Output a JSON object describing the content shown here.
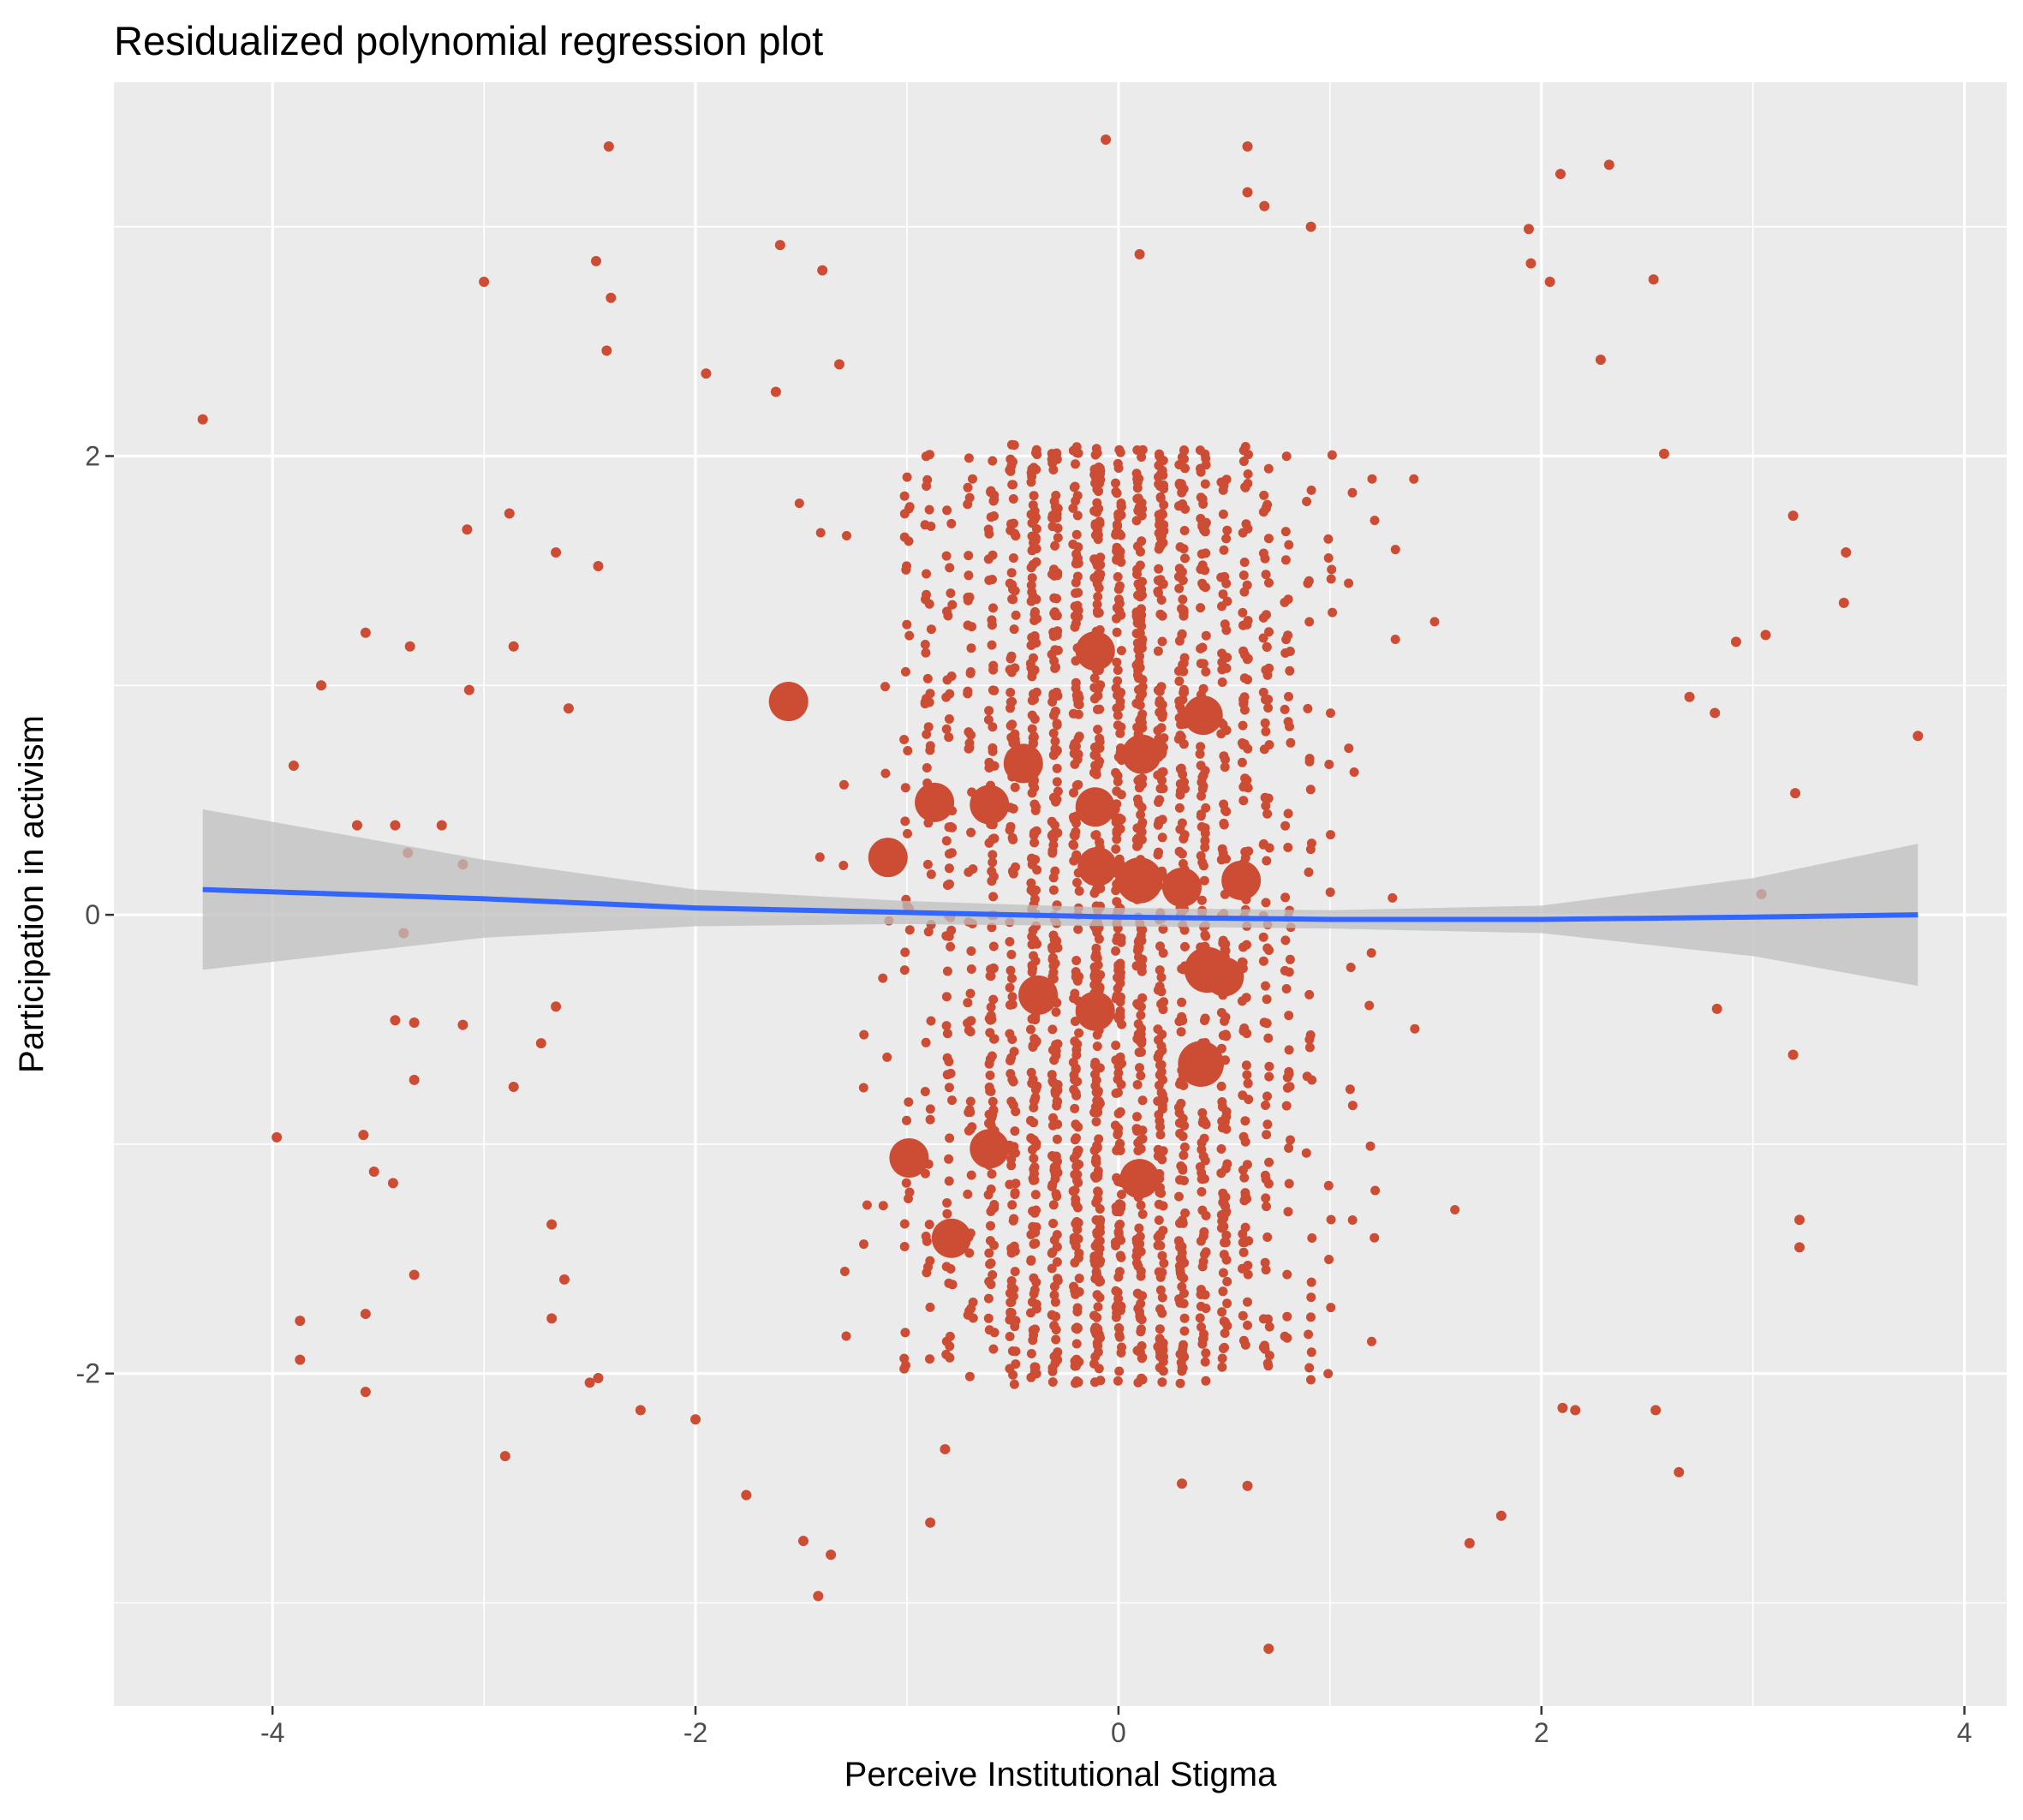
{
  "chart_data": {
    "type": "scatter",
    "title": "Residualized polynomial regression plot",
    "xlabel": "Perceive Institutional Stigma",
    "ylabel": "Participation in activism",
    "xlim": [
      -4.75,
      4.2
    ],
    "ylim": [
      -3.45,
      3.63
    ],
    "x_ticks": [
      -4,
      -2,
      0,
      2,
      4
    ],
    "x_tick_labels": [
      "-4",
      "-2",
      "0",
      "2",
      "4"
    ],
    "y_ticks": [
      -2,
      0,
      2
    ],
    "y_tick_labels": [
      "-2",
      "0",
      "2"
    ],
    "grid": true,
    "legend": "none",
    "colors": {
      "panel": "#ebebeb",
      "grid": "#ffffff",
      "point": "#cd4c34",
      "line": "#3366ff",
      "ribbon": "#bfbfbf"
    },
    "fit_line": {
      "x": [
        -4.33,
        -3,
        -2,
        -1,
        0,
        1,
        2,
        3,
        3.78
      ],
      "y": [
        0.11,
        0.07,
        0.03,
        0.01,
        -0.01,
        -0.02,
        -0.02,
        -0.01,
        0.0
      ],
      "ci_lower": [
        -0.24,
        -0.1,
        -0.05,
        -0.04,
        -0.05,
        -0.06,
        -0.08,
        -0.18,
        -0.31
      ],
      "ci_upper": [
        0.46,
        0.24,
        0.11,
        0.06,
        0.03,
        0.02,
        0.04,
        0.16,
        0.31
      ]
    },
    "large_points": [
      {
        "x": -1.56,
        "y": 0.93,
        "size": 5
      },
      {
        "x": -1.09,
        "y": 0.25,
        "size": 5
      },
      {
        "x": -0.87,
        "y": 0.49,
        "size": 5
      },
      {
        "x": -0.61,
        "y": 0.48,
        "size": 5
      },
      {
        "x": -0.45,
        "y": 0.66,
        "size": 5
      },
      {
        "x": -0.11,
        "y": 1.15,
        "size": 5
      },
      {
        "x": -0.11,
        "y": 0.47,
        "size": 5
      },
      {
        "x": -0.1,
        "y": 0.21,
        "size": 5
      },
      {
        "x": 0.11,
        "y": 0.7,
        "size": 5
      },
      {
        "x": 0.1,
        "y": 0.15,
        "size": 6
      },
      {
        "x": 0.3,
        "y": 0.12,
        "size": 5
      },
      {
        "x": 0.58,
        "y": 0.15,
        "size": 5
      },
      {
        "x": 0.4,
        "y": 0.87,
        "size": 5
      },
      {
        "x": 0.42,
        "y": -0.24,
        "size": 6
      },
      {
        "x": 0.5,
        "y": -0.27,
        "size": 5
      },
      {
        "x": -0.38,
        "y": -0.35,
        "size": 5
      },
      {
        "x": -0.11,
        "y": -0.42,
        "size": 5
      },
      {
        "x": 0.39,
        "y": -0.65,
        "size": 6
      },
      {
        "x": -0.99,
        "y": -1.06,
        "size": 5
      },
      {
        "x": -0.61,
        "y": -1.02,
        "size": 5
      },
      {
        "x": -0.79,
        "y": -1.41,
        "size": 5
      },
      {
        "x": 0.1,
        "y": -1.15,
        "size": 5
      }
    ],
    "outlier_points": [
      [
        -4.33,
        2.16
      ],
      [
        -3.77,
        1.0
      ],
      [
        -3.9,
        0.65
      ],
      [
        -3.56,
        1.23
      ],
      [
        -3.35,
        1.17
      ],
      [
        -3.0,
        2.76
      ],
      [
        -3.08,
        1.68
      ],
      [
        -3.07,
        0.98
      ],
      [
        -2.88,
        1.75
      ],
      [
        -2.86,
        1.17
      ],
      [
        -3.6,
        0.39
      ],
      [
        -3.42,
        0.39
      ],
      [
        -3.2,
        0.39
      ],
      [
        -3.1,
        0.22
      ],
      [
        -3.36,
        0.27
      ],
      [
        -3.38,
        -0.08
      ],
      [
        -3.42,
        -0.46
      ],
      [
        -3.33,
        -0.47
      ],
      [
        -3.1,
        -0.48
      ],
      [
        -2.73,
        -0.56
      ],
      [
        -3.33,
        -0.72
      ],
      [
        -2.86,
        -0.75
      ],
      [
        -3.98,
        -0.97
      ],
      [
        -3.57,
        -0.96
      ],
      [
        -3.43,
        -1.17
      ],
      [
        -3.52,
        -1.12
      ],
      [
        -3.33,
        -1.57
      ],
      [
        -3.56,
        -1.74
      ],
      [
        -3.87,
        -1.77
      ],
      [
        -3.87,
        -1.94
      ],
      [
        -3.56,
        -2.08
      ],
      [
        -2.9,
        -2.36
      ],
      [
        -2.46,
        -2.02
      ],
      [
        -2.26,
        -2.16
      ],
      [
        -2.0,
        -2.2
      ],
      [
        -1.76,
        -2.53
      ],
      [
        -1.49,
        -2.73
      ],
      [
        -1.36,
        -2.79
      ],
      [
        -1.42,
        -2.97
      ],
      [
        -0.89,
        -2.65
      ],
      [
        -0.82,
        -2.33
      ],
      [
        0.71,
        -3.2
      ],
      [
        0.61,
        -2.49
      ],
      [
        0.3,
        -2.48
      ],
      [
        1.66,
        -2.74
      ],
      [
        1.81,
        -2.62
      ],
      [
        2.65,
        -2.43
      ],
      [
        2.54,
        -2.16
      ],
      [
        2.1,
        -2.15
      ],
      [
        2.16,
        -2.16
      ],
      [
        3.19,
        -0.61
      ],
      [
        3.22,
        -1.33
      ],
      [
        3.22,
        -1.45
      ],
      [
        2.83,
        -0.41
      ],
      [
        3.04,
        0.09
      ],
      [
        3.2,
        0.53
      ],
      [
        2.82,
        0.88
      ],
      [
        2.7,
        0.95
      ],
      [
        2.92,
        1.19
      ],
      [
        3.06,
        1.22
      ],
      [
        3.78,
        0.78
      ],
      [
        3.43,
        1.36
      ],
      [
        3.44,
        1.58
      ],
      [
        3.19,
        1.74
      ],
      [
        2.58,
        2.01
      ],
      [
        2.53,
        2.77
      ],
      [
        2.32,
        3.27
      ],
      [
        2.09,
        3.23
      ],
      [
        1.94,
        2.99
      ],
      [
        1.95,
        2.84
      ],
      [
        2.04,
        2.76
      ],
      [
        2.28,
        2.42
      ],
      [
        -2.41,
        3.35
      ],
      [
        -2.47,
        2.85
      ],
      [
        -2.4,
        2.69
      ],
      [
        -2.42,
        2.46
      ],
      [
        -1.6,
        2.92
      ],
      [
        -1.4,
        2.81
      ],
      [
        -0.06,
        3.38
      ],
      [
        0.61,
        3.35
      ],
      [
        0.61,
        3.15
      ],
      [
        0.69,
        3.09
      ],
      [
        0.91,
        3.0
      ],
      [
        0.1,
        2.88
      ],
      [
        -1.32,
        2.4
      ],
      [
        -1.62,
        2.28
      ],
      [
        -1.95,
        2.36
      ],
      [
        -2.46,
        1.52
      ],
      [
        -2.66,
        1.58
      ],
      [
        -2.6,
        0.9
      ],
      [
        -2.66,
        -0.4
      ],
      [
        -2.62,
        -1.59
      ],
      [
        -2.68,
        -1.76
      ],
      [
        -2.68,
        -1.35
      ],
      [
        -2.5,
        -2.04
      ]
    ],
    "core_points": {
      "count": 2400,
      "seed": 7,
      "x_center": 0.0,
      "x_spread": 0.95,
      "x_limits": [
        -2.1,
        2.1
      ],
      "y_limits": [
        -2.05,
        2.05
      ]
    }
  }
}
